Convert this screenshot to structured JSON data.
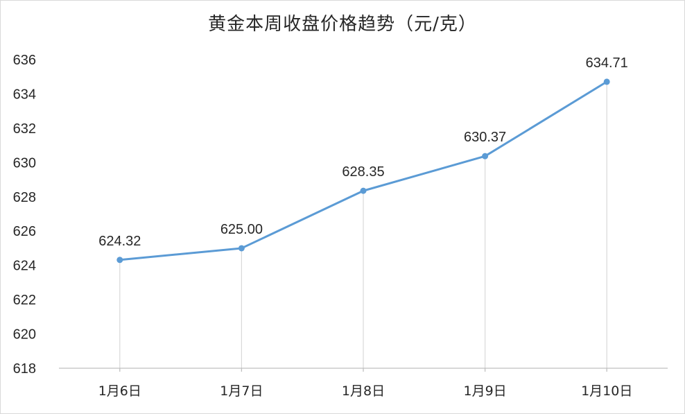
{
  "chart_data": {
    "type": "line",
    "title": "黄金本周收盘价格趋势（元/克）",
    "categories": [
      "1月6日",
      "1月7日",
      "1月8日",
      "1月9日",
      "1月10日"
    ],
    "values": [
      624.32,
      625.0,
      628.35,
      630.37,
      634.71
    ],
    "data_labels": [
      "624.32",
      "625.00",
      "628.35",
      "630.37",
      "634.71"
    ],
    "y_ticks": [
      "618",
      "620",
      "622",
      "624",
      "626",
      "628",
      "630",
      "632",
      "634",
      "636"
    ],
    "ylim": [
      618,
      636
    ],
    "xlabel": "",
    "ylabel": "",
    "grid": false,
    "drop_lines": true,
    "line_color": "#5b9bd5",
    "drop_line_color": "#d9d9d9",
    "axis_color": "#bfbfbf"
  }
}
